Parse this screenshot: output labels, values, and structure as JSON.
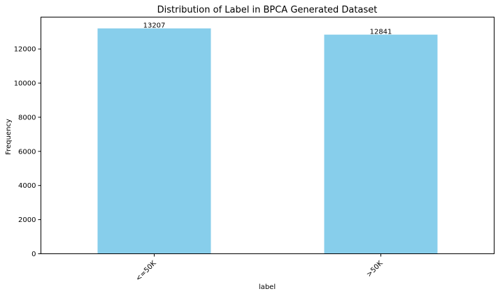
{
  "chart_data": {
    "type": "bar",
    "title": "Distribution of Label in BPCA Generated Dataset",
    "xlabel": "label",
    "ylabel": "Frequency",
    "categories": [
      "<=50K",
      ">50K"
    ],
    "values": [
      13207,
      12841
    ],
    "data_labels": [
      "13207",
      "12841"
    ],
    "ylim": [
      0,
      13868
    ],
    "yticks": [
      0,
      2000,
      4000,
      6000,
      8000,
      10000,
      12000
    ],
    "ytick_labels": [
      "0",
      "2000",
      "4000",
      "6000",
      "8000",
      "10000",
      "12000"
    ],
    "bar_color": "#87ceeb",
    "grid": false
  }
}
